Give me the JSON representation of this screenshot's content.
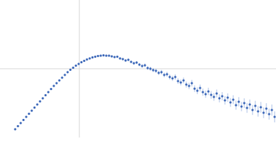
{
  "chart_data": {
    "type": "scatter",
    "xlim": [
      0,
      400
    ],
    "ylim": [
      0,
      200
    ],
    "xticks": [
      115
    ],
    "yticks": [
      100
    ],
    "grid": true,
    "series": [
      {
        "color": "#3a66b8",
        "error_color": "#a9bfe6",
        "x": [
          22,
          26,
          30,
          34,
          38,
          42,
          46,
          50,
          54,
          58,
          62,
          66,
          70,
          74,
          78,
          82,
          86,
          90,
          94,
          98,
          102,
          106,
          110,
          114,
          118,
          122,
          126,
          130,
          134,
          138,
          142,
          146,
          150,
          154,
          158,
          162,
          166,
          170,
          174,
          178,
          182,
          186,
          190,
          194,
          198,
          202,
          206,
          210,
          214,
          218,
          222,
          226,
          230,
          234,
          238,
          242,
          246,
          250,
          254,
          258,
          262,
          266,
          270,
          274,
          278,
          282,
          286,
          290,
          294,
          298,
          302,
          306,
          310,
          314,
          318,
          322,
          326,
          330,
          334,
          338,
          342,
          346,
          350,
          354,
          358,
          362,
          366,
          370,
          374,
          378,
          382,
          386,
          390,
          394,
          398
        ],
        "values": [
          12,
          16.5,
          21,
          25.5,
          30,
          34.5,
          39,
          43.5,
          48,
          52.5,
          57,
          61.5,
          66,
          70.5,
          75,
          79,
          83,
          87,
          91,
          95,
          98.5,
          101.5,
          104.5,
          107,
          109.5,
          111.5,
          113.5,
          115,
          116.5,
          117.5,
          118.5,
          119,
          119.5,
          119,
          119,
          118,
          117,
          117.5,
          115,
          114,
          112,
          113,
          110,
          108,
          109,
          106,
          104,
          105,
          101,
          100,
          98,
          97,
          94,
          95,
          91,
          92,
          88,
          86,
          88,
          82,
          80,
          83,
          77,
          75,
          79,
          71,
          68,
          72,
          66,
          63,
          67,
          62,
          59,
          64,
          57,
          60,
          54,
          58,
          51,
          55,
          47,
          52,
          45,
          50,
          43,
          48,
          40,
          46,
          38,
          44,
          36,
          42,
          34,
          40,
          30
        ],
        "errors": [
          0.8,
          0.8,
          0.8,
          0.8,
          0.8,
          0.8,
          0.8,
          0.8,
          0.8,
          0.8,
          0.8,
          0.8,
          0.8,
          0.8,
          0.8,
          0.8,
          0.8,
          0.8,
          0.8,
          0.8,
          0.8,
          0.8,
          0.8,
          0.8,
          0.8,
          0.8,
          0.8,
          0.8,
          0.8,
          0.8,
          0.8,
          0.8,
          0.8,
          1,
          1.1,
          1.2,
          1.3,
          1.5,
          1.6,
          1.7,
          1.8,
          1.9,
          2,
          2.2,
          2.3,
          2.4,
          2.5,
          2.6,
          2.8,
          2.9,
          3,
          3.1,
          3.2,
          3.4,
          3.5,
          3.6,
          3.7,
          3.8,
          4,
          4.1,
          4.2,
          4.3,
          4.4,
          4.6,
          4.7,
          4.8,
          4.9,
          5,
          5.2,
          5.3,
          5.4,
          5.5,
          5.6,
          5.8,
          5.9,
          6,
          6.1,
          6.2,
          6.4,
          6.5,
          6.6,
          6.7,
          6.8,
          7,
          7.1,
          7.2,
          7.3,
          7.4,
          7.6,
          7.7,
          7.8,
          7.9,
          8,
          8,
          8
        ]
      }
    ]
  }
}
